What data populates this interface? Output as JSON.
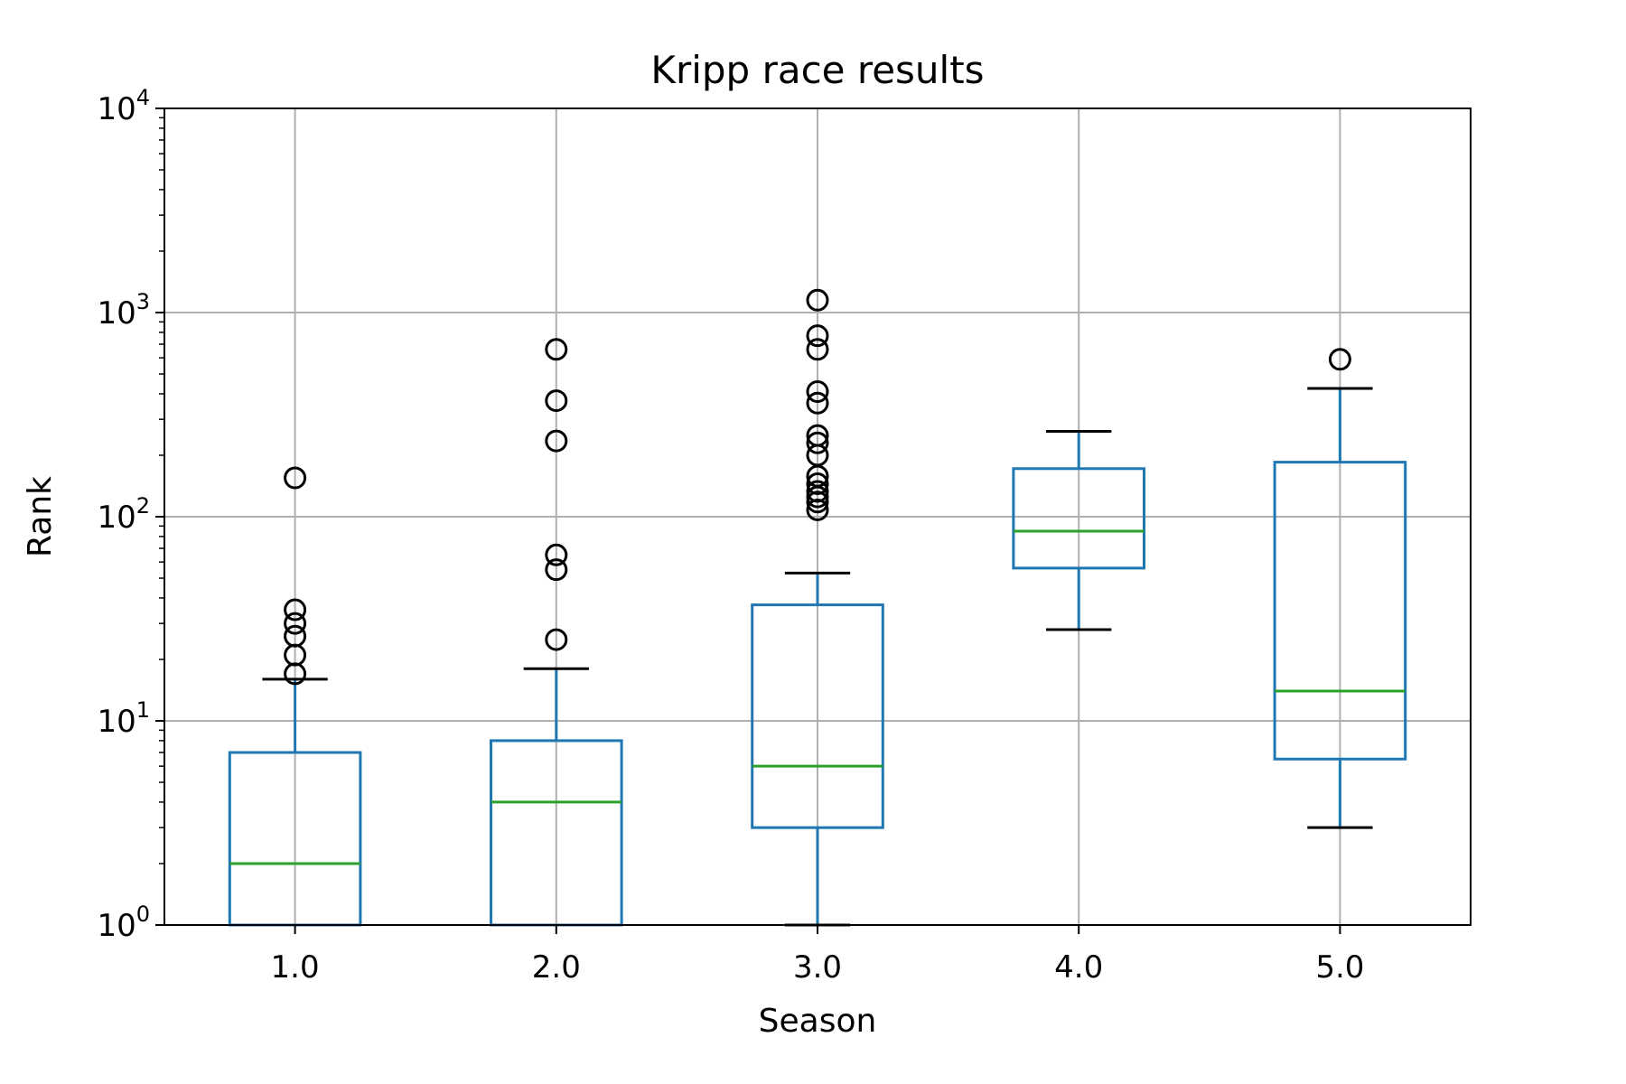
{
  "chart_data": {
    "type": "box",
    "title": "Kripp race results",
    "xlabel": "Season",
    "ylabel": "Rank",
    "yscale": "log",
    "ylim": [
      1,
      10000
    ],
    "xlim": [
      0.5,
      5.5
    ],
    "grid": true,
    "categories": [
      "1.0",
      "2.0",
      "3.0",
      "4.0",
      "5.0"
    ],
    "yticks": [
      {
        "value": 1,
        "base": "10",
        "exp": "0"
      },
      {
        "value": 10,
        "base": "10",
        "exp": "1"
      },
      {
        "value": 100,
        "base": "10",
        "exp": "2"
      },
      {
        "value": 1000,
        "base": "10",
        "exp": "3"
      },
      {
        "value": 10000,
        "base": "10",
        "exp": "4"
      }
    ],
    "boxes": [
      {
        "x": 1,
        "whislo": 1,
        "q1": 1,
        "median": 2,
        "q3": 7,
        "whishi": 16,
        "fliers": [
          17,
          21,
          26,
          30,
          35,
          155
        ]
      },
      {
        "x": 2,
        "whislo": 1,
        "q1": 1,
        "median": 4,
        "q3": 8,
        "whishi": 18,
        "fliers": [
          25,
          55,
          65,
          235,
          370,
          660
        ]
      },
      {
        "x": 3,
        "whislo": 1,
        "q1": 3,
        "median": 6,
        "q3": 37,
        "whishi": 53,
        "fliers": [
          108,
          118,
          125,
          133,
          145,
          158,
          200,
          230,
          250,
          360,
          410,
          660,
          770,
          1150
        ]
      },
      {
        "x": 4,
        "whislo": 28,
        "q1": 56,
        "median": 85,
        "q3": 172,
        "whishi": 262,
        "fliers": []
      },
      {
        "x": 5,
        "whislo": 3,
        "q1": 6.5,
        "median": 14,
        "q3": 185,
        "whishi": 425,
        "fliers": [
          590
        ]
      }
    ],
    "colors": {
      "box": "#1f77b4",
      "median": "#2ca02c",
      "cap": "#000000",
      "flier": "#000000",
      "grid": "#b0b0b0",
      "axes": "#000000"
    }
  }
}
